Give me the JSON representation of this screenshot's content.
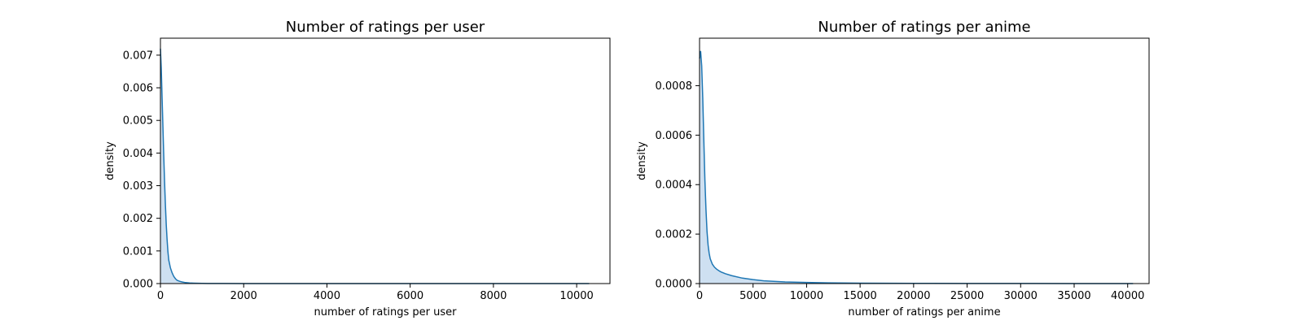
{
  "chart_data": [
    {
      "type": "area",
      "title": "Number of ratings per user",
      "xlabel": "number of ratings per user",
      "ylabel": "density",
      "xlim": [
        0,
        10800
      ],
      "ylim": [
        0,
        0.00752
      ],
      "xticks": [
        0,
        2000,
        4000,
        6000,
        8000,
        10000
      ],
      "xtick_labels": [
        "0",
        "2000",
        "4000",
        "6000",
        "8000",
        "10000"
      ],
      "yticks": [
        0,
        0.001,
        0.002,
        0.003,
        0.004,
        0.005,
        0.006,
        0.007
      ],
      "ytick_labels": [
        "0.000",
        "0.001",
        "0.002",
        "0.003",
        "0.004",
        "0.005",
        "0.006",
        "0.007"
      ],
      "grid": false,
      "color": "#1f77b4",
      "fill_color": "#c6dbef",
      "series": [
        {
          "x": [
            0,
            20,
            40,
            60,
            80,
            100,
            120,
            140,
            160,
            180,
            200,
            240,
            280,
            320,
            360,
            400,
            460,
            520,
            600,
            700,
            800,
            900,
            1000,
            1200,
            1500,
            2000,
            3000,
            5000,
            8000,
            10300
          ],
          "y": [
            0.0072,
            0.0066,
            0.0057,
            0.0048,
            0.0039,
            0.0031,
            0.0024,
            0.0018,
            0.00135,
            0.00098,
            0.00072,
            0.00048,
            0.00033,
            0.00022,
            0.00015,
            0.0001,
            7e-05,
            5e-05,
            3e-05,
            1.8e-05,
            1.2e-05,
            8e-06,
            5e-06,
            3e-06,
            2e-06,
            1e-06,
            5e-07,
            2e-07,
            1e-07,
            0.0
          ]
        }
      ]
    },
    {
      "type": "area",
      "title": "Number of ratings per anime",
      "xlabel": "number of ratings per anime",
      "ylabel": "density",
      "xlim": [
        0,
        42000
      ],
      "ylim": [
        0,
        0.000992
      ],
      "xticks": [
        0,
        5000,
        10000,
        15000,
        20000,
        25000,
        30000,
        35000,
        40000
      ],
      "xtick_labels": [
        "0",
        "5000",
        "10000",
        "15000",
        "20000",
        "25000",
        "30000",
        "35000",
        "40000"
      ],
      "yticks": [
        0,
        0.0002,
        0.0004,
        0.0006,
        0.0008
      ],
      "ytick_labels": [
        "0.0000",
        "0.0002",
        "0.0004",
        "0.0006",
        "0.0008"
      ],
      "grid": false,
      "color": "#1f77b4",
      "fill_color": "#c6dbef",
      "series": [
        {
          "x": [
            0,
            100,
            200,
            300,
            400,
            500,
            600,
            700,
            800,
            900,
            1000,
            1200,
            1400,
            1600,
            1800,
            2000,
            2400,
            3000,
            4000,
            5000,
            6000,
            8000,
            10000,
            12000,
            15000,
            20000,
            25000,
            30000,
            35000,
            40500
          ],
          "y": [
            0.00091,
            0.00094,
            0.00088,
            0.00075,
            0.00058,
            0.00042,
            0.0003,
            0.00021,
            0.000155,
            0.000122,
            0.0001,
            7.8e-05,
            6.6e-05,
            5.8e-05,
            5.2e-05,
            4.7e-05,
            4e-05,
            3.2e-05,
            2.2e-05,
            1.6e-05,
            1.1e-05,
            6.5e-06,
            4.5e-06,
            3e-06,
            1.8e-06,
            9e-07,
            5e-07,
            3e-07,
            2e-07,
            0.0
          ]
        }
      ]
    }
  ]
}
